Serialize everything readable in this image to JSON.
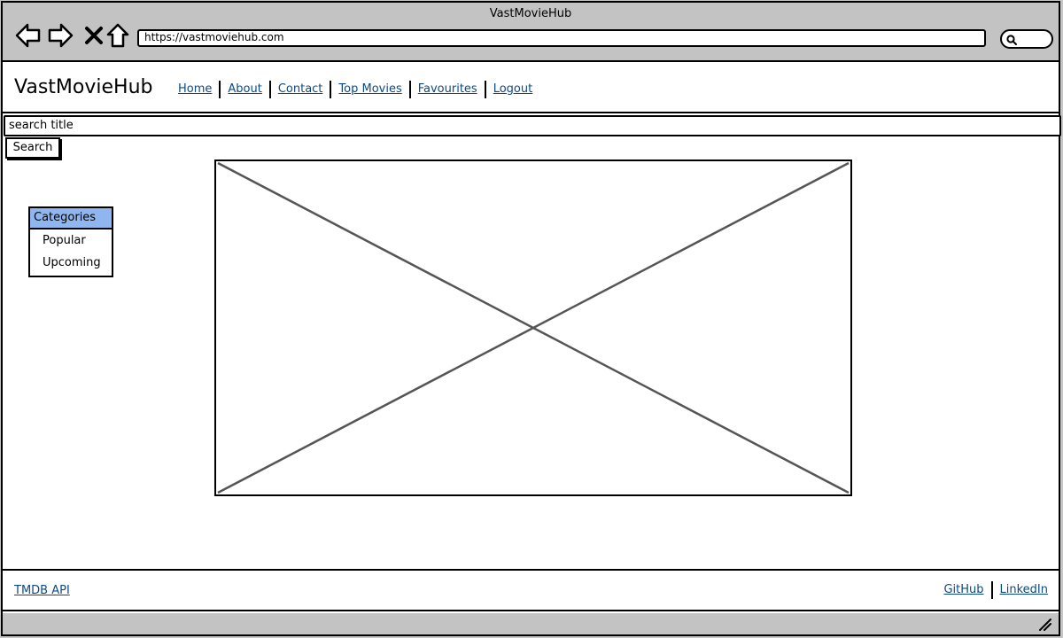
{
  "window": {
    "title": "VastMovieHub",
    "url": "https://vastmoviehub.com"
  },
  "header": {
    "brand": "VastMovieHub",
    "nav": [
      "Home",
      "About",
      "Contact",
      "Top Movies",
      "Favourites",
      "Logout"
    ]
  },
  "search": {
    "placeholder": "search title",
    "button_label": "Search"
  },
  "categories": {
    "title": "Categories",
    "items": [
      "Popular",
      "Upcoming"
    ]
  },
  "footer": {
    "left_link": "TMDB API",
    "right_links": [
      "GitHub",
      "LinkedIn"
    ]
  },
  "colors": {
    "chrome": "#c3c3c3",
    "link": "#0b4a86",
    "category_header": "#8fb6ef"
  },
  "icons": {
    "back": "arrow-left-icon",
    "forward": "arrow-right-icon",
    "stop": "close-icon",
    "home": "home-icon",
    "search": "search-icon",
    "resize": "resize-grip-icon"
  }
}
